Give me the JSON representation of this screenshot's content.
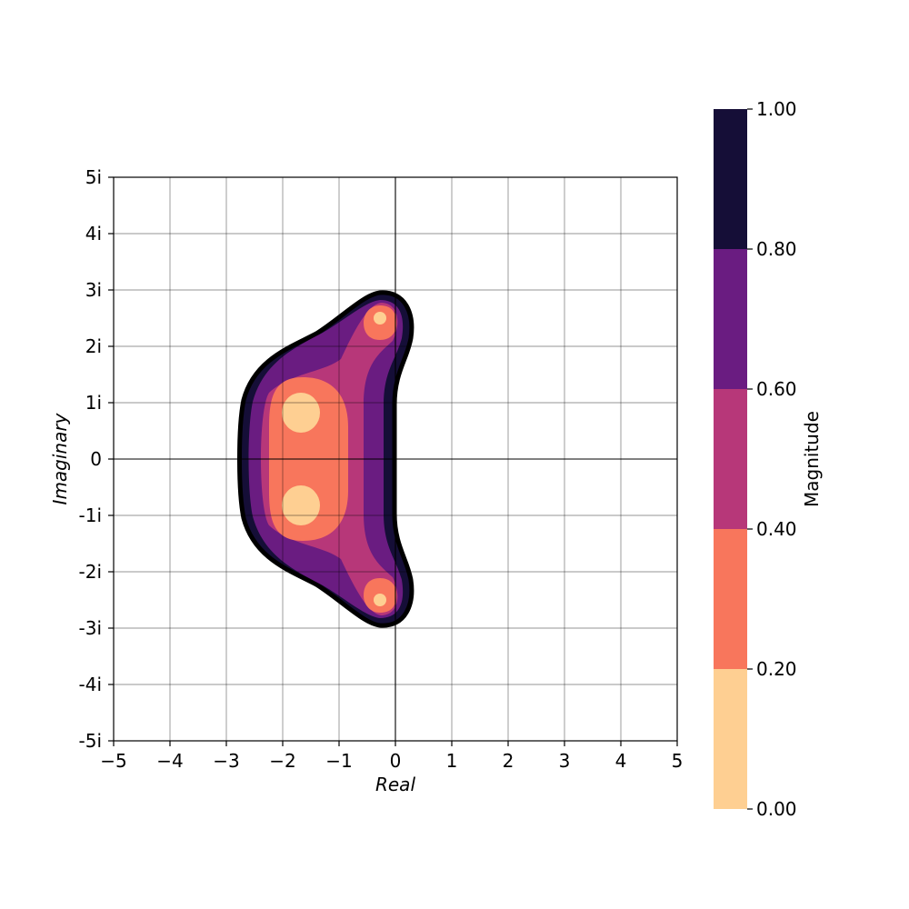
{
  "chart_data": {
    "type": "heatmap",
    "subtype": "filled-contour",
    "title": "",
    "xlabel": "Real",
    "ylabel": "Imaginary",
    "xlim": [
      -5,
      5
    ],
    "ylim": [
      -5,
      5
    ],
    "x_ticks": [
      -5,
      -4,
      -3,
      -2,
      -1,
      0,
      1,
      2,
      3,
      4,
      5
    ],
    "x_tick_labels": [
      "−5",
      "−4",
      "−3",
      "−2",
      "−1",
      "0",
      "1",
      "2",
      "3",
      "4",
      "5"
    ],
    "y_ticks": [
      5,
      4,
      3,
      2,
      1,
      0,
      -1,
      -2,
      -3,
      -4,
      -5
    ],
    "y_tick_labels": [
      "5i",
      "4i",
      "3i",
      "2i",
      "1i",
      "0",
      "-1i",
      "-2i",
      "-3i",
      "-4i",
      "-5i"
    ],
    "grid": true,
    "colormap": "magma_r",
    "colorbar": {
      "label": "Magnitude",
      "range": [
        0,
        1
      ],
      "levels": [
        0.0,
        0.2,
        0.4,
        0.6,
        0.8,
        1.0
      ],
      "tick_labels": [
        "0.00",
        "0.20",
        "0.40",
        "0.60",
        "0.80",
        "1.00"
      ],
      "band_colors": [
        "#fecf92",
        "#f8765c",
        "#b73779",
        "#6a1c81",
        "#150e37"
      ],
      "placement": "right"
    },
    "poles": [
      {
        "re": -1.7,
        "im": 0.8
      },
      {
        "re": -1.7,
        "im": -0.8
      },
      {
        "re": -0.3,
        "im": 2.5
      },
      {
        "re": -0.3,
        "im": -2.5
      }
    ],
    "region_boundary": {
      "level": 1.0,
      "outline_color": "#000000"
    }
  }
}
